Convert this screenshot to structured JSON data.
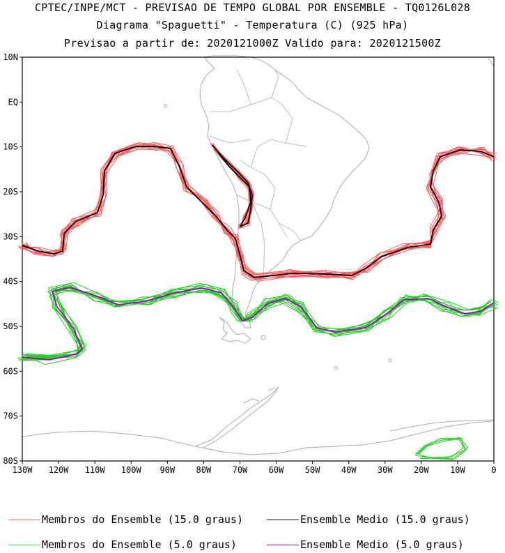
{
  "header": {
    "line1": "CPTEC/INPE/MCT - PREVISAO DE TEMPO GLOBAL POR ENSEMBLE - TQ0126L028",
    "line2": "Diagrama \"Spaguetti\" - Temperatura (C) (925 hPa)",
    "line3": "Previsao a partir de: 2020121000Z  Valido para: 2020121500Z"
  },
  "axes": {
    "lat_labels": [
      "10N",
      "EQ",
      "10S",
      "20S",
      "30S",
      "40S",
      "50S",
      "60S",
      "70S",
      "80S"
    ],
    "lon_labels": [
      "130W",
      "120W",
      "110W",
      "100W",
      "90W",
      "80W",
      "70W",
      "60W",
      "50W",
      "40W",
      "30W",
      "20W",
      "10W",
      "0"
    ]
  },
  "legend": [
    {
      "label": "Membros do Ensemble (15.0 graus)",
      "color": "#ff6666"
    },
    {
      "label": "Ensemble Medio (15.0 graus)",
      "color": "#000000"
    },
    {
      "label": "Membros do Ensemble (5.0 graus)",
      "color": "#33dd33"
    },
    {
      "label": "Ensemble Medio (5.0 graus)",
      "color": "#aa00cc"
    }
  ],
  "colors": {
    "coast": "#aaaaaa",
    "member15": "#ff5a5a",
    "mean15": "#000000",
    "member5": "#22cc22",
    "mean5": "#aa00cc"
  }
}
